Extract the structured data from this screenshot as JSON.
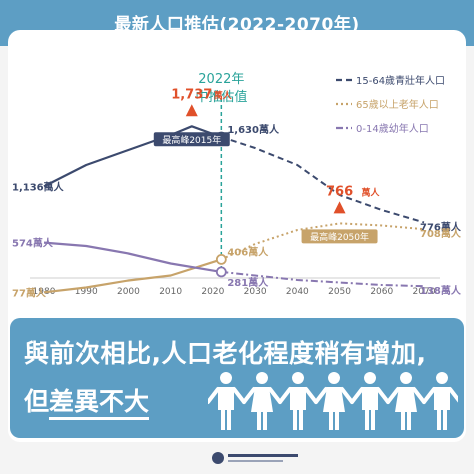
{
  "header": {
    "title": "最新人口推估(2022-2070年)"
  },
  "chart_data": {
    "type": "line",
    "x_axis": {
      "range": [
        1980,
        2070
      ],
      "ticks": [
        "1980",
        "1990",
        "2000",
        "2010",
        "2020",
        "2030",
        "2040",
        "2050",
        "2060",
        "2070"
      ]
    },
    "projection_marker": {
      "year": 2022,
      "label_line1": "2022年",
      "label_line2": "中推估值"
    },
    "legend_placement": "top-right",
    "series": [
      {
        "name": "15-64歲青壯年人口",
        "color": "#3c4a6e",
        "style": "dashed-after-2022",
        "points": [
          [
            1980,
            1136
          ],
          [
            1990,
            1350
          ],
          [
            2000,
            1500
          ],
          [
            2010,
            1650
          ],
          [
            2015,
            1737
          ],
          [
            2022,
            1630
          ],
          [
            2030,
            1520
          ],
          [
            2040,
            1350
          ],
          [
            2050,
            1050
          ],
          [
            2060,
            900
          ],
          [
            2070,
            776
          ]
        ]
      },
      {
        "name": "65歲以上老年人口",
        "color": "#c7a36a",
        "style": "dotted-after-2022",
        "points": [
          [
            1980,
            77
          ],
          [
            1990,
            125
          ],
          [
            2000,
            195
          ],
          [
            2010,
            245
          ],
          [
            2022,
            406
          ],
          [
            2030,
            560
          ],
          [
            2040,
            700
          ],
          [
            2050,
            766
          ],
          [
            2060,
            745
          ],
          [
            2070,
            708
          ]
        ]
      },
      {
        "name": "0-14歲幼年人口",
        "color": "#8877b0",
        "style": "dashdot-after-2022",
        "points": [
          [
            1980,
            574
          ],
          [
            1990,
            540
          ],
          [
            2000,
            465
          ],
          [
            2010,
            365
          ],
          [
            2022,
            281
          ],
          [
            2030,
            245
          ],
          [
            2040,
            200
          ],
          [
            2050,
            175
          ],
          [
            2060,
            150
          ],
          [
            2070,
            138
          ]
        ]
      }
    ],
    "value_labels": [
      {
        "text": "1,136萬人",
        "series": 0,
        "year": 1980,
        "anchor": "left"
      },
      {
        "text": "1,630萬人",
        "series": 0,
        "year": 2022,
        "anchor": "right"
      },
      {
        "text": "776萬人",
        "series": 0,
        "year": 2070,
        "anchor": "right"
      },
      {
        "text": "574萬人",
        "series": 2,
        "year": 1980,
        "anchor": "left"
      },
      {
        "text": "281萬人",
        "series": 2,
        "year": 2022,
        "anchor": "right"
      },
      {
        "text": "138萬人",
        "series": 2,
        "year": 2070,
        "anchor": "right"
      },
      {
        "text": "77萬人",
        "series": 1,
        "year": 1980,
        "anchor": "left"
      },
      {
        "text": "406萬人",
        "series": 1,
        "year": 2022,
        "anchor": "right"
      },
      {
        "text": "708萬人",
        "series": 1,
        "year": 2070,
        "anchor": "right"
      }
    ],
    "peaks": [
      {
        "value_text": "1,737",
        "unit": "萬人",
        "peak_label": "最高峰2015年",
        "series": 0,
        "year": 2015,
        "value": 1737,
        "color": "#e0502a"
      },
      {
        "value_text": "766",
        "unit": "萬人",
        "peak_label": "最高峰2050年",
        "series": 1,
        "year": 2050,
        "value": 766,
        "color": "#e0502a"
      }
    ]
  },
  "banner": {
    "line1": "與前次相比,人口老化程度稍有增加,",
    "line2_prefix": "但",
    "line2_highlight": "差異不大"
  },
  "colors": {
    "header": "#5d9ec4",
    "banner": "#5d9ec4",
    "teal_marker": "#2aa39a",
    "peak": "#e0502a"
  }
}
